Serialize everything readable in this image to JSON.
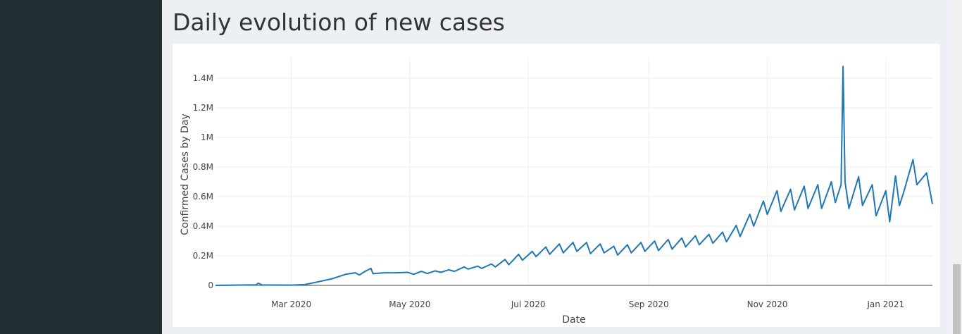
{
  "page": {
    "title": "Daily evolution of new cases"
  },
  "chart_data": {
    "type": "line",
    "title": "",
    "xlabel": "Date",
    "ylabel": "Confirmed Cases by Day",
    "x_range": [
      "2020-01-22",
      "2021-01-25"
    ],
    "ylim": [
      0,
      1500000
    ],
    "x_ticks": [
      {
        "date": "2020-03-01",
        "label": "Mar 2020"
      },
      {
        "date": "2020-05-01",
        "label": "May 2020"
      },
      {
        "date": "2020-07-01",
        "label": "Jul 2020"
      },
      {
        "date": "2020-09-01",
        "label": "Sep 2020"
      },
      {
        "date": "2020-11-01",
        "label": "Nov 2020"
      },
      {
        "date": "2021-01-01",
        "label": "Jan 2021"
      }
    ],
    "y_ticks": [
      {
        "value": 0,
        "label": "0"
      },
      {
        "value": 200000,
        "label": "0.2M"
      },
      {
        "value": 400000,
        "label": "0.4M"
      },
      {
        "value": 600000,
        "label": "0.6M"
      },
      {
        "value": 800000,
        "label": "0.8M"
      },
      {
        "value": 1000000,
        "label": "1M"
      },
      {
        "value": 1200000,
        "label": "1.2M"
      },
      {
        "value": 1400000,
        "label": "1.4M"
      }
    ],
    "grid": true,
    "legend": "none",
    "series": [
      {
        "color": "#1f77b4",
        "x": [
          "2020-01-22",
          "2020-02-01",
          "2020-02-12",
          "2020-02-13",
          "2020-02-15",
          "2020-03-01",
          "2020-03-08",
          "2020-03-15",
          "2020-03-22",
          "2020-03-29",
          "2020-04-03",
          "2020-04-05",
          "2020-04-08",
          "2020-04-11",
          "2020-04-12",
          "2020-04-18",
          "2020-04-24",
          "2020-04-30",
          "2020-05-03",
          "2020-05-07",
          "2020-05-10",
          "2020-05-14",
          "2020-05-17",
          "2020-05-21",
          "2020-05-24",
          "2020-05-29",
          "2020-05-31",
          "2020-06-05",
          "2020-06-07",
          "2020-06-12",
          "2020-06-14",
          "2020-06-19",
          "2020-06-21",
          "2020-06-26",
          "2020-06-28",
          "2020-07-03",
          "2020-07-05",
          "2020-07-10",
          "2020-07-12",
          "2020-07-17",
          "2020-07-19",
          "2020-07-24",
          "2020-07-26",
          "2020-07-31",
          "2020-08-02",
          "2020-08-07",
          "2020-08-09",
          "2020-08-14",
          "2020-08-16",
          "2020-08-21",
          "2020-08-23",
          "2020-08-28",
          "2020-08-30",
          "2020-09-04",
          "2020-09-06",
          "2020-09-11",
          "2020-09-13",
          "2020-09-18",
          "2020-09-20",
          "2020-09-25",
          "2020-09-27",
          "2020-10-02",
          "2020-10-04",
          "2020-10-09",
          "2020-10-11",
          "2020-10-16",
          "2020-10-18",
          "2020-10-23",
          "2020-10-25",
          "2020-10-30",
          "2020-11-01",
          "2020-11-06",
          "2020-11-08",
          "2020-11-13",
          "2020-11-15",
          "2020-11-20",
          "2020-11-22",
          "2020-11-27",
          "2020-11-29",
          "2020-12-04",
          "2020-12-06",
          "2020-12-09",
          "2020-12-10",
          "2020-12-11",
          "2020-12-13",
          "2020-12-18",
          "2020-12-20",
          "2020-12-25",
          "2020-12-27",
          "2021-01-01",
          "2021-01-03",
          "2021-01-06",
          "2021-01-08",
          "2021-01-10",
          "2021-01-15",
          "2021-01-17",
          "2021-01-22",
          "2021-01-25"
        ],
        "y": [
          0,
          2000,
          4000,
          15000,
          3000,
          2000,
          5000,
          25000,
          45000,
          75000,
          85000,
          70000,
          95000,
          115000,
          80000,
          85000,
          85000,
          88000,
          75000,
          95000,
          80000,
          98000,
          88000,
          105000,
          95000,
          125000,
          110000,
          130000,
          115000,
          145000,
          125000,
          175000,
          140000,
          210000,
          170000,
          230000,
          195000,
          260000,
          210000,
          280000,
          220000,
          290000,
          230000,
          290000,
          215000,
          280000,
          220000,
          265000,
          205000,
          275000,
          220000,
          290000,
          230000,
          300000,
          235000,
          310000,
          245000,
          320000,
          260000,
          335000,
          275000,
          345000,
          285000,
          360000,
          295000,
          405000,
          330000,
          480000,
          400000,
          570000,
          480000,
          640000,
          500000,
          650000,
          510000,
          670000,
          520000,
          680000,
          520000,
          700000,
          560000,
          680000,
          1480000,
          700000,
          520000,
          735000,
          540000,
          680000,
          470000,
          640000,
          430000,
          740000,
          540000,
          620000,
          850000,
          680000,
          760000,
          550000
        ]
      }
    ]
  }
}
